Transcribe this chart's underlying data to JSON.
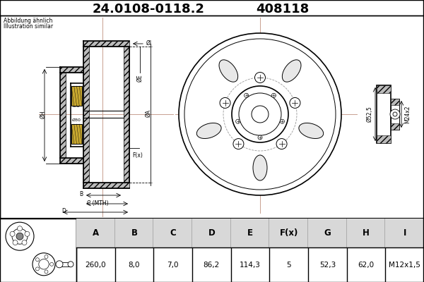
{
  "title_part_number": "24.0108-0118.2",
  "title_ref_number": "408118",
  "subtitle_line1": "Abbildung ähnlich",
  "subtitle_line2": "Illustration similar",
  "table_headers": [
    "A",
    "B",
    "C",
    "D",
    "E",
    "F(x)",
    "G",
    "H",
    "I"
  ],
  "table_values": [
    "260,0",
    "8,0",
    "7,0",
    "86,2",
    "114,3",
    "5",
    "52,3",
    "62,0",
    "M12x1,5"
  ],
  "bg_color": "#ffffff",
  "line_color": "#000000",
  "table_header_bg": "#d8d8d8",
  "crosshair_color": "#c8a090",
  "hatch_color": "#bbbbbb"
}
